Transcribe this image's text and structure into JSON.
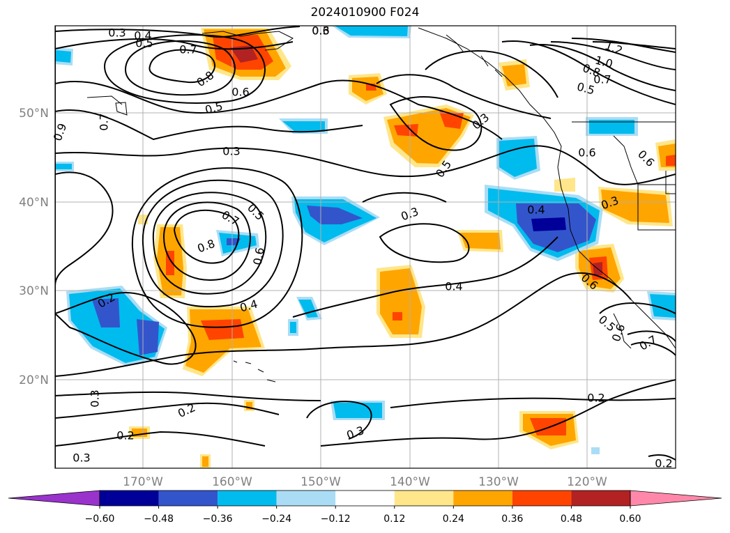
{
  "title": "2024010900 F024",
  "lat_labels": [
    "50°N",
    "40°N",
    "30°N",
    "20°N"
  ],
  "lon_labels": [
    "170°W",
    "160°W",
    "150°W",
    "140°W",
    "130°W",
    "120°W"
  ],
  "contour_labels": [
    "0.3",
    "0.4",
    "0.5",
    "0.7",
    "0.8",
    "0.6",
    "0.5",
    "0.3",
    "0.7",
    "0.8",
    "0.5",
    "0.6",
    "0.4",
    "0.3",
    "0.4",
    "0.5",
    "0.3",
    "0.6",
    "0.2",
    "0.3",
    "0.2",
    "0.2",
    "0.3",
    "0.3",
    "0.2",
    "0.4",
    "0.3",
    "0.2",
    "0.6",
    "0.5",
    "0.6",
    "0.7",
    "0.6",
    "1.2",
    "1.0",
    "0.8",
    "0.7",
    "0.5",
    "0.3",
    "0.9",
    "0.7",
    "0.6"
  ],
  "colorbar": {
    "colors": [
      "#9933cc",
      "#000099",
      "#3355cc",
      "#00bbee",
      "#aaddf5",
      "#ffffff",
      "#ffe68a",
      "#ffa500",
      "#ff4400",
      "#b22222",
      "#ff88aa"
    ],
    "tick_labels": [
      "−0.60",
      "−0.48",
      "−0.36",
      "−0.24",
      "−0.12",
      "0.12",
      "0.24",
      "0.36",
      "0.48",
      "0.60"
    ]
  },
  "colors": {
    "orange": "#ffa500",
    "red": "#ff4400",
    "darkred": "#b22222",
    "lightyellow": "#ffe68a",
    "cyan": "#00bbee",
    "lightblue": "#aaddf5",
    "blue": "#3355cc",
    "navy": "#000099",
    "grid": "#b0b0b0"
  }
}
